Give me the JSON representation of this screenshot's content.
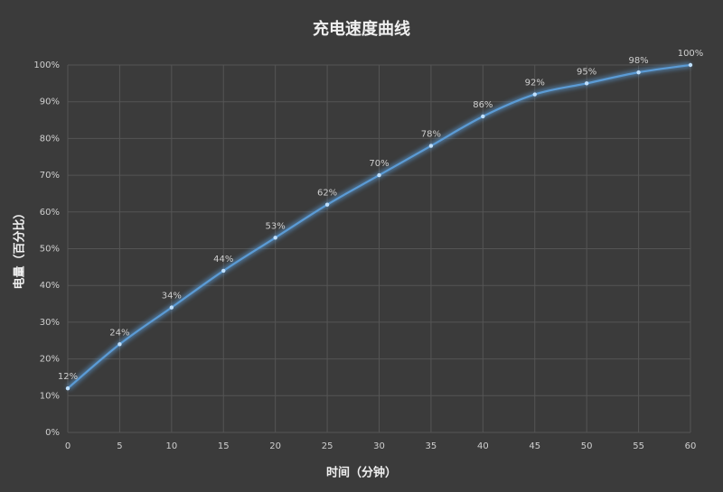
{
  "chart_data": {
    "type": "line",
    "title": "充电速度曲线",
    "x_label": "时间（分钟）",
    "y_label": "电量（百分比）",
    "x": [
      0,
      5,
      10,
      15,
      20,
      25,
      30,
      35,
      40,
      45,
      50,
      55,
      60
    ],
    "series": [
      {
        "name": "电量",
        "color": "#5b9bd5",
        "values": [
          12,
          24,
          34,
          44,
          53,
          62,
          70,
          78,
          86,
          92,
          95,
          98,
          100
        ],
        "value_labels": [
          "12%",
          "24%",
          "34%",
          "44%",
          "53%",
          "62%",
          "70%",
          "78%",
          "86%",
          "92%",
          "95%",
          "98%",
          "100%"
        ]
      }
    ],
    "xlim": [
      0,
      60
    ],
    "xticks": [
      0,
      5,
      10,
      15,
      20,
      25,
      30,
      35,
      40,
      45,
      50,
      55,
      60
    ],
    "ylim": [
      0,
      100
    ],
    "yticks": [
      {
        "value": 0,
        "label": "0%"
      },
      {
        "value": 10,
        "label": "10%"
      },
      {
        "value": 20,
        "label": "20%"
      },
      {
        "value": 30,
        "label": "30%"
      },
      {
        "value": 40,
        "label": "40%"
      },
      {
        "value": 50,
        "label": "50%"
      },
      {
        "value": 60,
        "label": "60%"
      },
      {
        "value": 70,
        "label": "70%"
      },
      {
        "value": 80,
        "label": "80%"
      },
      {
        "value": 90,
        "label": "90%"
      },
      {
        "value": 100,
        "label": "100%"
      }
    ],
    "grid": true
  }
}
